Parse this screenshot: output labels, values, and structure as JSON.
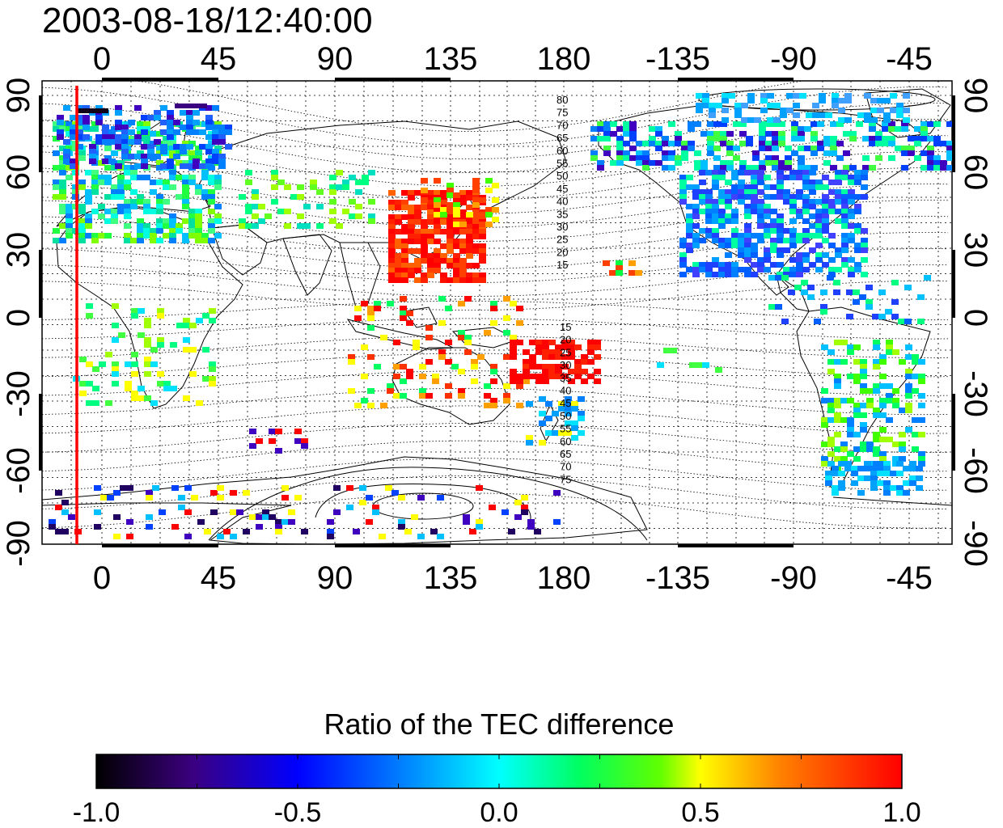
{
  "timestamp": "2003-08-18/12:40:00",
  "map": {
    "lon_ticks": [
      "0",
      "45",
      "90",
      "135",
      "180",
      "-135",
      "-90",
      "-45"
    ],
    "lat_ticks": [
      "90",
      "60",
      "30",
      "0",
      "-30",
      "-60",
      "-90"
    ],
    "north_contours": [
      "80",
      "75",
      "70",
      "65",
      "60",
      "55",
      "50",
      "45",
      "40",
      "35",
      "30",
      "25",
      "20",
      "15"
    ],
    "south_contours": [
      "15",
      "20",
      "25",
      "30",
      "35",
      "40",
      "45",
      "50",
      "55",
      "60",
      "65",
      "70",
      "75"
    ],
    "marker_line_color": "#ff0000"
  },
  "colorbar": {
    "title": "Ratio of the TEC difference",
    "tick_labels": [
      "-1.0",
      "-0.5",
      "0.0",
      "0.5",
      "1.0"
    ],
    "range": [
      -1.0,
      1.0
    ],
    "colors": [
      "#000000",
      "#3b0080",
      "#0000ff",
      "#00ffff",
      "#00ff00",
      "#ffff00",
      "#ff0000"
    ]
  }
}
